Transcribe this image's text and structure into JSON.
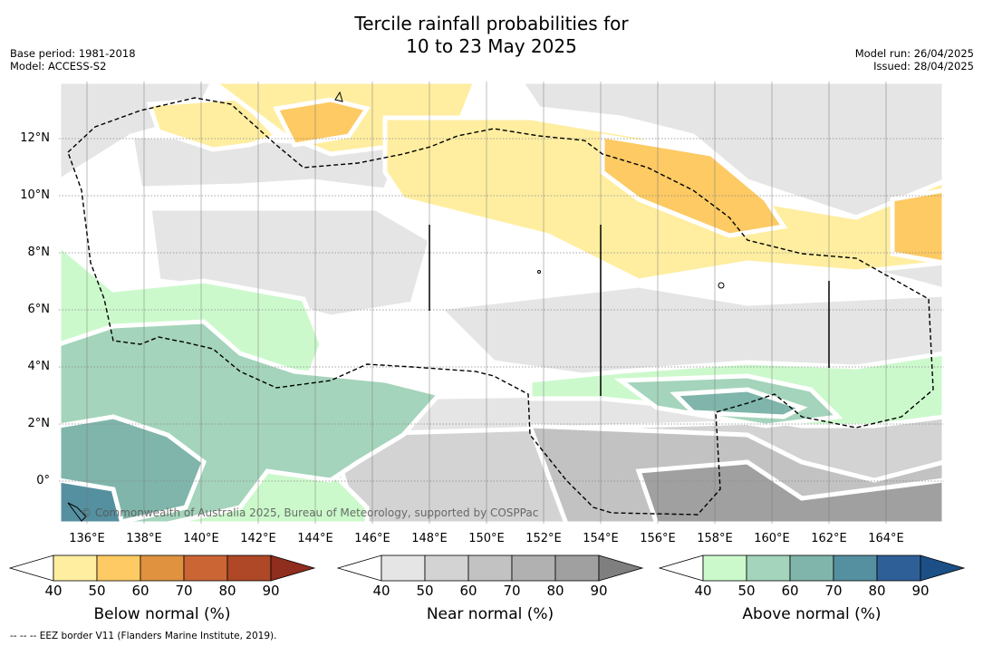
{
  "title_line1": "Tercile rainfall probabilities for",
  "title_line2": "10 to 23 May 2025",
  "base_period": "Base period: 1981-2018",
  "model": "Model: ACCESS-S2",
  "model_run": "Model run: 26/04/2025",
  "issued": "Issued: 28/04/2025",
  "copyright": "© Commonwealth of Australia 2025, Bureau of Meteorology, supported by COSPPac",
  "footer": "-- -- -- EEZ border V11 (Flanders Marine Institute, 2019).",
  "lat_labels": [
    "12°N",
    "10°N",
    "8°N",
    "6°N",
    "4°N",
    "2°N",
    "0°"
  ],
  "lon_labels": [
    "136°E",
    "138°E",
    "140°E",
    "142°E",
    "144°E",
    "146°E",
    "148°E",
    "150°E",
    "152°E",
    "154°E",
    "156°E",
    "158°E",
    "160°E",
    "162°E",
    "164°E"
  ],
  "colorbars": [
    {
      "title": "Below normal (%)",
      "ticks": [
        "40",
        "50",
        "60",
        "70",
        "80",
        "90"
      ],
      "colors": [
        "#ffeea0",
        "#fdca63",
        "#e0923f",
        "#cb6534",
        "#ae4826",
        "#8f2d1e"
      ]
    },
    {
      "title": "Near normal (%)",
      "ticks": [
        "40",
        "50",
        "60",
        "70",
        "80",
        "90"
      ],
      "colors": [
        "#e5e5e5",
        "#d3d3d3",
        "#c2c2c2",
        "#b1b1b1",
        "#a0a0a0",
        "#7f7f7f"
      ]
    },
    {
      "title": "Above normal (%)",
      "ticks": [
        "40",
        "50",
        "60",
        "70",
        "80",
        "90"
      ],
      "colors": [
        "#ccf9cc",
        "#a4d4bb",
        "#7fb5aa",
        "#5590a0",
        "#2f5f97",
        "#1b4f86"
      ]
    }
  ]
}
